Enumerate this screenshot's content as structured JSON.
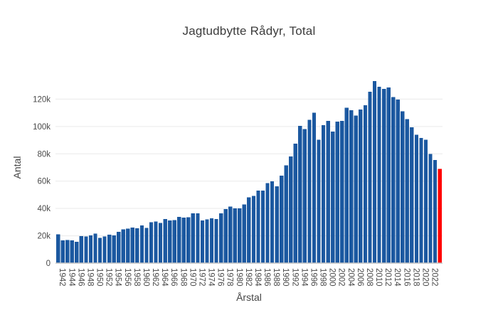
{
  "chart": {
    "title": "Jagtudbytte Rådyr, Total",
    "colors": {
      "bar": "#1b58a0",
      "highlight_bar": "#ff0000",
      "grid": "#e9e9e9",
      "axis_line": "#c4c4c4",
      "text": "#444444",
      "background": "#ffffff"
    }
  },
  "chart_data": {
    "type": "bar",
    "title": "Jagtudbytte Rådyr, Total",
    "xlabel": "Årstal",
    "ylabel": "Antal",
    "grid": "horizontal",
    "legend": "none",
    "ylim": [
      0,
      140000
    ],
    "yticks": [
      0,
      20000,
      40000,
      60000,
      80000,
      100000,
      120000
    ],
    "ytick_labels": [
      "0",
      "20k",
      "40k",
      "60k",
      "80k",
      "100k",
      "120k"
    ],
    "xticks": [
      1942,
      1944,
      1946,
      1948,
      1950,
      1952,
      1954,
      1956,
      1958,
      1960,
      1962,
      1964,
      1966,
      1968,
      1970,
      1972,
      1974,
      1976,
      1978,
      1980,
      1982,
      1984,
      1986,
      1988,
      1990,
      1992,
      1994,
      1996,
      1998,
      2000,
      2002,
      2004,
      2006,
      2008,
      2010,
      2012,
      2014,
      2016,
      2018,
      2020,
      2022
    ],
    "x": [
      1941,
      1942,
      1943,
      1944,
      1945,
      1946,
      1947,
      1948,
      1949,
      1950,
      1951,
      1952,
      1953,
      1954,
      1955,
      1956,
      1957,
      1958,
      1959,
      1960,
      1961,
      1962,
      1963,
      1964,
      1965,
      1966,
      1967,
      1968,
      1969,
      1970,
      1971,
      1972,
      1973,
      1974,
      1975,
      1976,
      1977,
      1978,
      1979,
      1980,
      1981,
      1982,
      1983,
      1984,
      1985,
      1986,
      1987,
      1988,
      1989,
      1990,
      1991,
      1992,
      1993,
      1994,
      1995,
      1996,
      1997,
      1998,
      1999,
      2000,
      2001,
      2002,
      2003,
      2004,
      2005,
      2006,
      2007,
      2008,
      2009,
      2010,
      2011,
      2012,
      2013,
      2014,
      2015,
      2016,
      2017,
      2018,
      2019,
      2020,
      2021,
      2022,
      2023
    ],
    "values": [
      21000,
      16600,
      17000,
      16600,
      15500,
      19800,
      19400,
      20300,
      21600,
      18500,
      19400,
      20700,
      20200,
      22900,
      24800,
      25200,
      26100,
      25600,
      27600,
      25800,
      30000,
      30500,
      29400,
      32400,
      31100,
      31500,
      33800,
      33400,
      33500,
      36400,
      36400,
      31100,
      32000,
      32900,
      32400,
      36500,
      39600,
      41400,
      40200,
      40200,
      42900,
      48200,
      49100,
      53200,
      53200,
      58600,
      59800,
      56300,
      64000,
      71500,
      78000,
      87500,
      100500,
      98000,
      105000,
      110000,
      90300,
      101000,
      104200,
      96400,
      103600,
      104200,
      113700,
      112000,
      108000,
      112500,
      115500,
      125500,
      133200,
      129000,
      127500,
      128500,
      121500,
      119800,
      111000,
      105400,
      99500,
      94000,
      91500,
      90300,
      79900,
      75500,
      68900
    ],
    "highlight": {
      "year": 2023,
      "color": "#ff0000"
    }
  }
}
